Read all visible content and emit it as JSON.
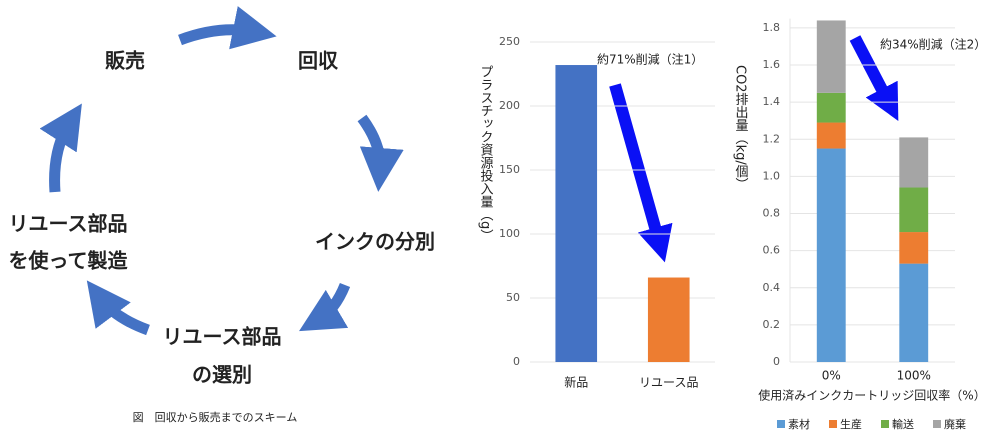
{
  "diagram": {
    "nodes": [
      [
        "販売"
      ],
      [
        "回収"
      ],
      [
        "インクの分別"
      ],
      [
        "リユース部品",
        "の選別"
      ],
      [
        "リユース部品",
        "を使って製造"
      ]
    ],
    "caption": "図　回収から販売までのスキーム"
  },
  "chart_data": [
    {
      "type": "bar",
      "categories": [
        "新品",
        "リユース品"
      ],
      "values": [
        232,
        66
      ],
      "colors": [
        "#4472c4",
        "#ed7d31"
      ],
      "ylabel": "プラスチック資源投入量（g）",
      "annotation": "約71%削減（注1）",
      "ylim": [
        0,
        250
      ],
      "yticks": [
        0,
        50,
        100,
        150,
        200,
        250
      ],
      "grid": true
    },
    {
      "type": "stacked-bar",
      "categories": [
        "0%",
        "100%"
      ],
      "series": [
        {
          "name": "素材",
          "color": "#5b9bd5",
          "values": [
            1.15,
            0.53
          ]
        },
        {
          "name": "生産",
          "color": "#ed7d31",
          "values": [
            0.14,
            0.17
          ]
        },
        {
          "name": "輸送",
          "color": "#70ad47",
          "values": [
            0.16,
            0.24
          ]
        },
        {
          "name": "廃棄",
          "color": "#a5a5a5",
          "values": [
            0.39,
            0.27
          ]
        }
      ],
      "xlabel": "使用済みインクカートリッジ回収率（%）",
      "ylabel": "CO2排出量（kg/個）",
      "annotation": "約34%削減（注2）",
      "ylim": [
        0,
        1.85
      ],
      "yticks": [
        0,
        0.2,
        0.4,
        0.6,
        0.8,
        {
          "value": 1,
          "label": "1.0"
        },
        1.2,
        1.4,
        1.6,
        1.8
      ],
      "grid": true
    }
  ]
}
